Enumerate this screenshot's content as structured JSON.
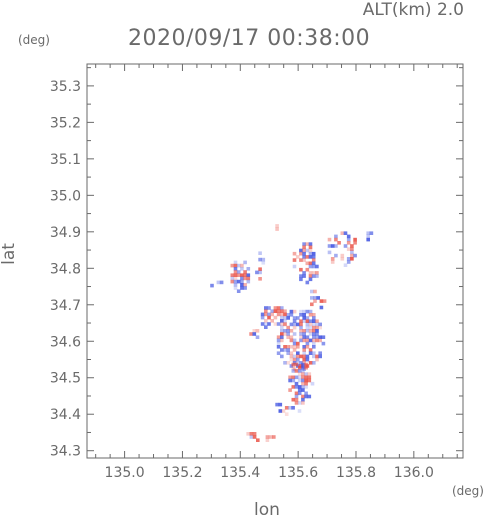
{
  "header": {
    "alt_label": "ALT(km) 2.0",
    "time_label": "2020/09/17 00:38:00",
    "y_unit": "(deg)",
    "x_unit": "(deg)"
  },
  "chart_data": {
    "type": "heatmap",
    "xlabel": "lon",
    "ylabel": "lat",
    "xlim": [
      134.87,
      136.17
    ],
    "ylim": [
      34.28,
      35.36
    ],
    "x_ticks": [
      135.0,
      135.2,
      135.4,
      135.6,
      135.8,
      136.0
    ],
    "x_tick_labels": [
      "135.0",
      "135.2",
      "135.4",
      "135.6",
      "135.8",
      "136.0"
    ],
    "y_ticks": [
      34.3,
      34.4,
      34.5,
      34.6,
      34.7,
      34.8,
      34.9,
      35.0,
      35.1,
      35.2,
      35.3
    ],
    "y_tick_labels": [
      "34.3",
      "34.4",
      "34.5",
      "34.6",
      "34.7",
      "34.8",
      "34.9",
      "35.0",
      "35.1",
      "35.2",
      "35.3"
    ],
    "grid": false,
    "colors": {
      "positive": "#e8483c",
      "negative": "#3a4ee0",
      "axis": "#6a6a6a"
    },
    "clusters": [
      {
        "lon": 135.6,
        "lat": 34.61,
        "rlon": 0.085,
        "rlat": 0.085,
        "density": 0.75
      },
      {
        "lon": 135.51,
        "lat": 34.67,
        "rlon": 0.05,
        "rlat": 0.035,
        "density": 0.7
      },
      {
        "lon": 135.6,
        "lat": 34.49,
        "rlon": 0.045,
        "rlat": 0.06,
        "density": 0.75
      },
      {
        "lon": 135.62,
        "lat": 34.82,
        "rlon": 0.05,
        "rlat": 0.06,
        "density": 0.55
      },
      {
        "lon": 135.74,
        "lat": 34.86,
        "rlon": 0.06,
        "rlat": 0.05,
        "density": 0.45
      },
      {
        "lon": 135.84,
        "lat": 34.895,
        "rlon": 0.015,
        "rlat": 0.015,
        "density": 0.8
      },
      {
        "lon": 135.39,
        "lat": 34.785,
        "rlon": 0.035,
        "rlat": 0.045,
        "density": 0.8
      },
      {
        "lon": 135.31,
        "lat": 34.765,
        "rlon": 0.025,
        "rlat": 0.01,
        "density": 0.6
      },
      {
        "lon": 135.46,
        "lat": 34.815,
        "rlon": 0.02,
        "rlat": 0.04,
        "density": 0.3
      },
      {
        "lon": 135.52,
        "lat": 34.92,
        "rlon": 0.01,
        "rlat": 0.01,
        "density": 0.7
      },
      {
        "lon": 135.47,
        "lat": 34.345,
        "rlon": 0.06,
        "rlat": 0.015,
        "density": 0.4
      },
      {
        "lon": 135.56,
        "lat": 34.42,
        "rlon": 0.05,
        "rlat": 0.02,
        "density": 0.35
      },
      {
        "lon": 135.66,
        "lat": 34.72,
        "rlon": 0.03,
        "rlat": 0.03,
        "density": 0.4
      },
      {
        "lon": 135.44,
        "lat": 34.63,
        "rlon": 0.02,
        "rlat": 0.03,
        "density": 0.35
      }
    ]
  }
}
